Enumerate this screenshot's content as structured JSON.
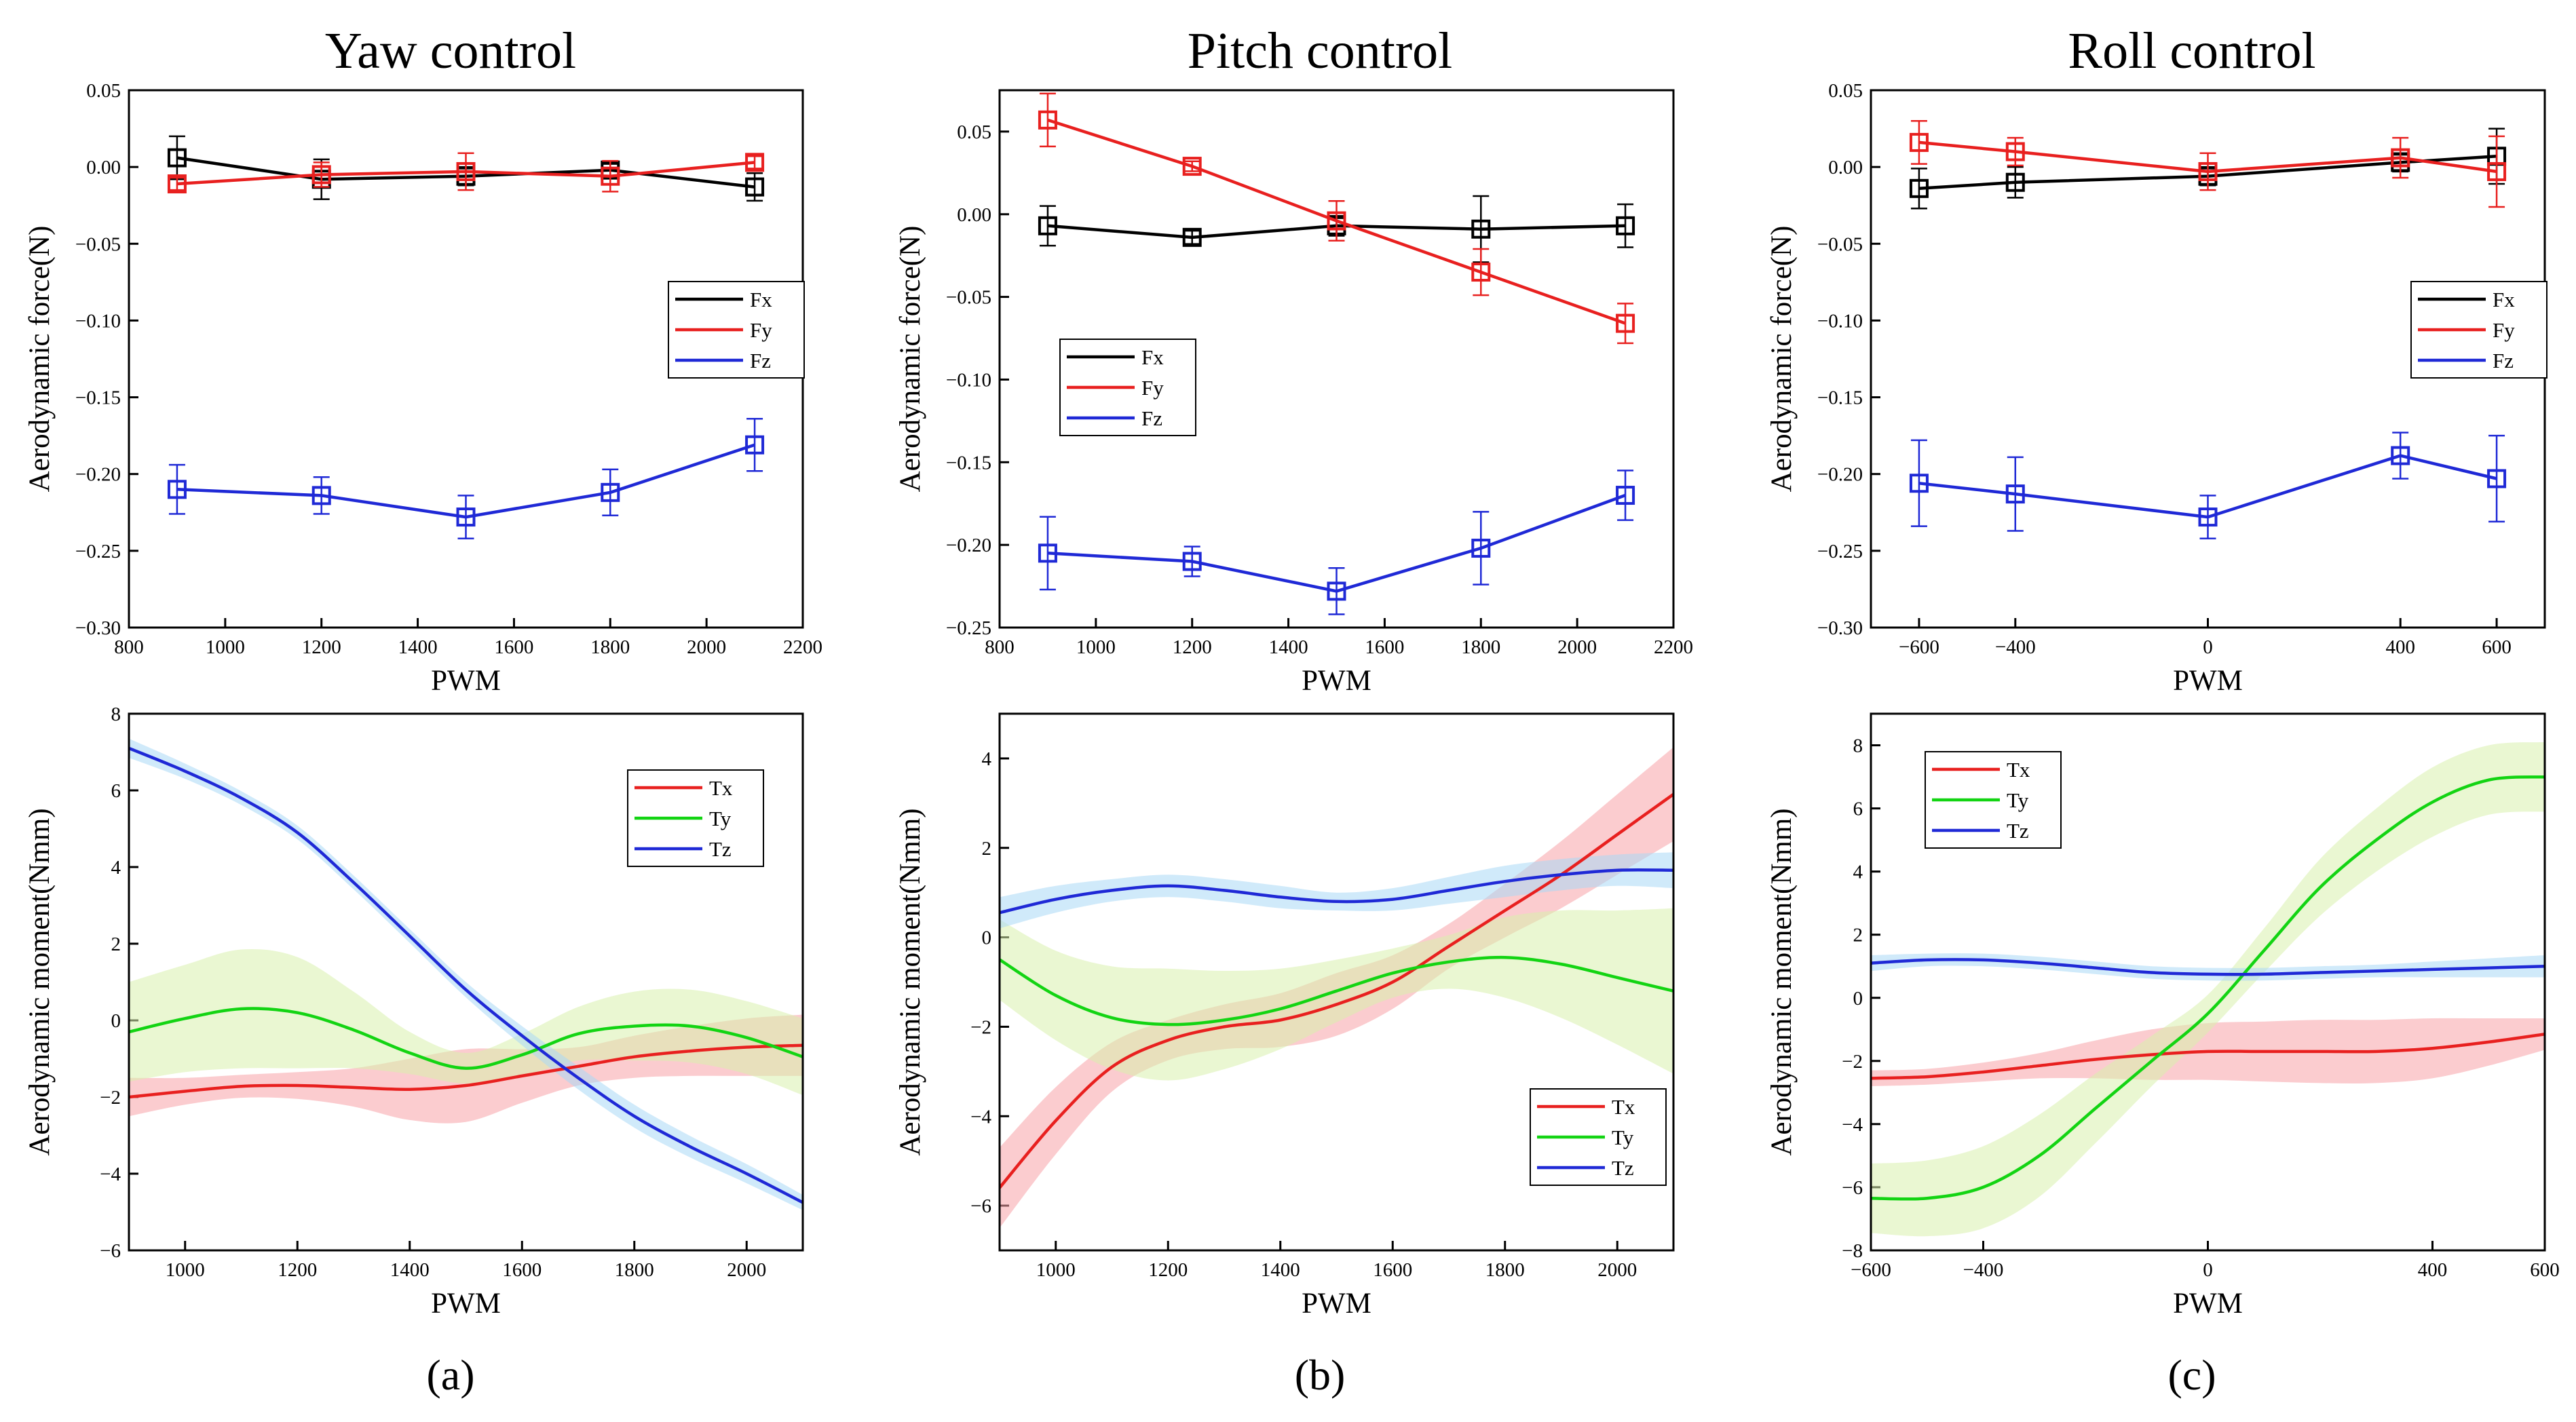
{
  "column_titles": [
    "Yaw control",
    "Pitch control",
    "Roll control"
  ],
  "panel_labels": [
    "(a)",
    "(b)",
    "(c)"
  ],
  "chart_data": [
    {
      "id": "yaw-force",
      "type": "line",
      "markers": "square-open",
      "error_bars": true,
      "title": "Yaw control",
      "xlabel": "PWM",
      "ylabel": "Aerodynamic force(N)",
      "xlim": [
        800,
        2200
      ],
      "ylim": [
        -0.3,
        0.05
      ],
      "xticks": [
        "800",
        "1000",
        "1200",
        "1400",
        "1600",
        "1800",
        "2000",
        "2200"
      ],
      "yticks": [
        "0.05",
        "0.00",
        "−0.05",
        "−0.10",
        "−0.15",
        "−0.20",
        "−0.25",
        "−0.30"
      ],
      "legend": "right-middle",
      "x": [
        900,
        1200,
        1500,
        1800,
        2100
      ],
      "series": [
        {
          "name": "Fx",
          "color": "#000000",
          "values": [
            0.006,
            -0.008,
            -0.006,
            -0.002,
            -0.013
          ],
          "err": [
            0.014,
            0.013,
            0.006,
            0.004,
            0.009
          ]
        },
        {
          "name": "Fy",
          "color": "#e8201f",
          "values": [
            -0.011,
            -0.005,
            -0.003,
            -0.006,
            0.003
          ],
          "err": [
            0.004,
            0.008,
            0.012,
            0.01,
            0.004
          ]
        },
        {
          "name": "Fz",
          "color": "#1f29d6",
          "values": [
            -0.21,
            -0.214,
            -0.228,
            -0.212,
            -0.181
          ],
          "err": [
            0.016,
            0.012,
            0.014,
            0.015,
            0.017
          ]
        }
      ]
    },
    {
      "id": "pitch-force",
      "type": "line",
      "markers": "square-open",
      "error_bars": true,
      "title": "Pitch control",
      "xlabel": "PWM",
      "ylabel": "Aerodynamic force(N)",
      "xlim": [
        800,
        2200
      ],
      "ylim": [
        -0.25,
        0.075
      ],
      "xticks": [
        "800",
        "1000",
        "1200",
        "1400",
        "1600",
        "1800",
        "2000",
        "2200"
      ],
      "yticks": [
        "0.05",
        "0.00",
        "−0.05",
        "−0.10",
        "−0.15",
        "−0.20",
        "−0.25"
      ],
      "legend": "left-middle",
      "x": [
        900,
        1200,
        1500,
        1800,
        2100
      ],
      "series": [
        {
          "name": "Fx",
          "color": "#000000",
          "values": [
            -0.007,
            -0.014,
            -0.007,
            -0.009,
            -0.007
          ],
          "err": [
            0.012,
            0.004,
            0.006,
            0.02,
            0.013
          ]
        },
        {
          "name": "Fy",
          "color": "#e8201f",
          "values": [
            0.057,
            0.029,
            -0.004,
            -0.035,
            -0.066
          ],
          "err": [
            0.016,
            0.003,
            0.012,
            0.014,
            0.012
          ]
        },
        {
          "name": "Fz",
          "color": "#1f29d6",
          "values": [
            -0.205,
            -0.21,
            -0.228,
            -0.202,
            -0.17
          ],
          "err": [
            0.022,
            0.009,
            0.014,
            0.022,
            0.015
          ]
        }
      ]
    },
    {
      "id": "roll-force",
      "type": "line",
      "markers": "square-open",
      "error_bars": true,
      "title": "Roll control",
      "xlabel": "PWM",
      "ylabel": "Aerodynamic force(N)",
      "xlim": [
        -700,
        700
      ],
      "ylim": [
        -0.3,
        0.05
      ],
      "xticks": [
        "−600",
        "−400",
        "0",
        "400",
        "600"
      ],
      "xtick_values": [
        -600,
        -400,
        0,
        400,
        600
      ],
      "yticks": [
        "0.05",
        "0.00",
        "−0.05",
        "−0.10",
        "−0.15",
        "−0.20",
        "−0.25",
        "−0.30"
      ],
      "legend": "right-middle",
      "x": [
        -600,
        -400,
        0,
        400,
        600
      ],
      "series": [
        {
          "name": "Fx",
          "color": "#000000",
          "values": [
            -0.014,
            -0.01,
            -0.006,
            0.003,
            0.007
          ],
          "err": [
            0.013,
            0.01,
            0.006,
            0.006,
            0.018
          ]
        },
        {
          "name": "Fy",
          "color": "#e8201f",
          "values": [
            0.016,
            0.01,
            -0.003,
            0.006,
            -0.003
          ],
          "err": [
            0.014,
            0.009,
            0.012,
            0.013,
            0.023
          ]
        },
        {
          "name": "Fz",
          "color": "#1f29d6",
          "values": [
            -0.206,
            -0.213,
            -0.228,
            -0.188,
            -0.203
          ],
          "err": [
            0.028,
            0.024,
            0.014,
            0.015,
            0.028
          ]
        }
      ]
    },
    {
      "id": "yaw-moment",
      "type": "line",
      "smooth": true,
      "confidence_band": true,
      "xlabel": "PWM",
      "ylabel": "Aerodynamic moment(Nmm)",
      "xlim": [
        900,
        2100
      ],
      "ylim": [
        -6,
        8
      ],
      "xticks": [
        "1000",
        "1200",
        "1400",
        "1600",
        "1800",
        "2000"
      ],
      "yticks": [
        "8",
        "6",
        "4",
        "2",
        "0",
        "−2",
        "−4",
        "−6"
      ],
      "legend": "right-top",
      "x": [
        900,
        1000,
        1100,
        1200,
        1300,
        1400,
        1500,
        1600,
        1700,
        1800,
        1900,
        2000,
        2100
      ],
      "series": [
        {
          "name": "Tx",
          "color": "#e8201f",
          "band": "#f7a3a8",
          "values": [
            -2.0,
            -1.85,
            -1.72,
            -1.7,
            -1.75,
            -1.8,
            -1.7,
            -1.45,
            -1.2,
            -0.95,
            -0.8,
            -0.7,
            -0.65
          ],
          "half_width": [
            0.5,
            0.35,
            0.3,
            0.35,
            0.5,
            0.8,
            0.95,
            0.7,
            0.5,
            0.55,
            0.65,
            0.75,
            0.8
          ]
        },
        {
          "name": "Ty",
          "color": "#13d413",
          "band": "#d9f0ad",
          "values": [
            -0.3,
            0.05,
            0.3,
            0.2,
            -0.25,
            -0.85,
            -1.25,
            -0.9,
            -0.35,
            -0.15,
            -0.15,
            -0.45,
            -0.95
          ],
          "half_width": [
            1.3,
            1.4,
            1.55,
            1.45,
            1.0,
            0.55,
            0.4,
            0.55,
            0.7,
            0.9,
            0.95,
            0.95,
            1.0
          ]
        },
        {
          "name": "Tz",
          "color": "#1f29d6",
          "band": "#a9d8f5",
          "values": [
            7.1,
            6.5,
            5.8,
            4.9,
            3.6,
            2.2,
            0.8,
            -0.4,
            -1.5,
            -2.5,
            -3.3,
            -4.0,
            -4.75
          ],
          "half_width": [
            0.25,
            0.2,
            0.18,
            0.18,
            0.18,
            0.18,
            0.2,
            0.25,
            0.3,
            0.3,
            0.28,
            0.25,
            0.2
          ]
        }
      ]
    },
    {
      "id": "pitch-moment",
      "type": "line",
      "smooth": true,
      "confidence_band": true,
      "xlabel": "PWM",
      "ylabel": "Aerodynamic moment(Nmm)",
      "xlim": [
        900,
        2100
      ],
      "ylim": [
        -7,
        5
      ],
      "xticks": [
        "1000",
        "1200",
        "1400",
        "1600",
        "1800",
        "2000"
      ],
      "yticks": [
        "4",
        "2",
        "0",
        "−2",
        "−4",
        "−6"
      ],
      "legend": "right-bottom",
      "x": [
        900,
        1000,
        1100,
        1200,
        1300,
        1400,
        1500,
        1600,
        1700,
        1800,
        1900,
        2000,
        2100
      ],
      "series": [
        {
          "name": "Tx",
          "color": "#e8201f",
          "band": "#f7a3a8",
          "values": [
            -5.6,
            -4.1,
            -2.9,
            -2.3,
            -2.0,
            -1.85,
            -1.5,
            -1.0,
            -0.2,
            0.6,
            1.4,
            2.3,
            3.2
          ],
          "half_width": [
            0.9,
            0.75,
            0.55,
            0.45,
            0.5,
            0.6,
            0.7,
            0.6,
            0.5,
            0.6,
            0.75,
            0.9,
            1.05
          ]
        },
        {
          "name": "Ty",
          "color": "#13d413",
          "band": "#d9f0ad",
          "values": [
            -0.5,
            -1.3,
            -1.8,
            -1.95,
            -1.85,
            -1.6,
            -1.2,
            -0.8,
            -0.55,
            -0.45,
            -0.6,
            -0.9,
            -1.2
          ],
          "half_width": [
            0.9,
            1.0,
            1.15,
            1.25,
            1.1,
            0.9,
            0.7,
            0.55,
            0.6,
            0.9,
            1.2,
            1.5,
            1.85
          ]
        },
        {
          "name": "Tz",
          "color": "#1f29d6",
          "band": "#a9d8f5",
          "values": [
            0.55,
            0.85,
            1.05,
            1.15,
            1.05,
            0.9,
            0.8,
            0.85,
            1.05,
            1.25,
            1.4,
            1.5,
            1.5
          ],
          "half_width": [
            0.35,
            0.3,
            0.25,
            0.25,
            0.25,
            0.25,
            0.2,
            0.25,
            0.3,
            0.35,
            0.35,
            0.35,
            0.4
          ]
        }
      ]
    },
    {
      "id": "roll-moment",
      "type": "line",
      "smooth": true,
      "confidence_band": true,
      "xlabel": "PWM",
      "ylabel": "Aerodynamic moment(Nmm)",
      "xlim": [
        -600,
        600
      ],
      "ylim": [
        -8,
        9
      ],
      "xticks": [
        "−600",
        "−400",
        "0",
        "400",
        "600"
      ],
      "xtick_values": [
        -600,
        -400,
        0,
        400,
        600
      ],
      "yticks": [
        "8",
        "6",
        "4",
        "2",
        "0",
        "−2",
        "−4",
        "−6",
        "−8"
      ],
      "legend": "left-top",
      "x": [
        -600,
        -500,
        -400,
        -300,
        -200,
        -100,
        0,
        100,
        200,
        300,
        400,
        500,
        600
      ],
      "series": [
        {
          "name": "Tx",
          "color": "#e8201f",
          "band": "#f7a3a8",
          "values": [
            -2.55,
            -2.5,
            -2.35,
            -2.15,
            -1.95,
            -1.8,
            -1.7,
            -1.7,
            -1.7,
            -1.7,
            -1.6,
            -1.4,
            -1.15
          ],
          "half_width": [
            0.25,
            0.25,
            0.3,
            0.4,
            0.6,
            0.8,
            0.9,
            0.95,
            1.0,
            1.0,
            0.95,
            0.75,
            0.5
          ]
        },
        {
          "name": "Ty",
          "color": "#13d413",
          "band": "#d9f0ad",
          "values": [
            -6.35,
            -6.35,
            -6.0,
            -5.0,
            -3.5,
            -2.0,
            -0.5,
            1.5,
            3.5,
            5.0,
            6.2,
            6.9,
            7.0
          ],
          "half_width": [
            1.1,
            1.2,
            1.3,
            1.3,
            1.1,
            0.8,
            0.6,
            0.7,
            0.9,
            1.0,
            1.1,
            1.1,
            1.1
          ]
        },
        {
          "name": "Tz",
          "color": "#1f29d6",
          "band": "#a9d8f5",
          "values": [
            1.1,
            1.2,
            1.2,
            1.1,
            0.95,
            0.8,
            0.75,
            0.75,
            0.8,
            0.85,
            0.9,
            0.95,
            1.0
          ],
          "half_width": [
            0.25,
            0.2,
            0.2,
            0.2,
            0.2,
            0.2,
            0.2,
            0.2,
            0.2,
            0.2,
            0.25,
            0.3,
            0.35
          ]
        }
      ]
    }
  ]
}
